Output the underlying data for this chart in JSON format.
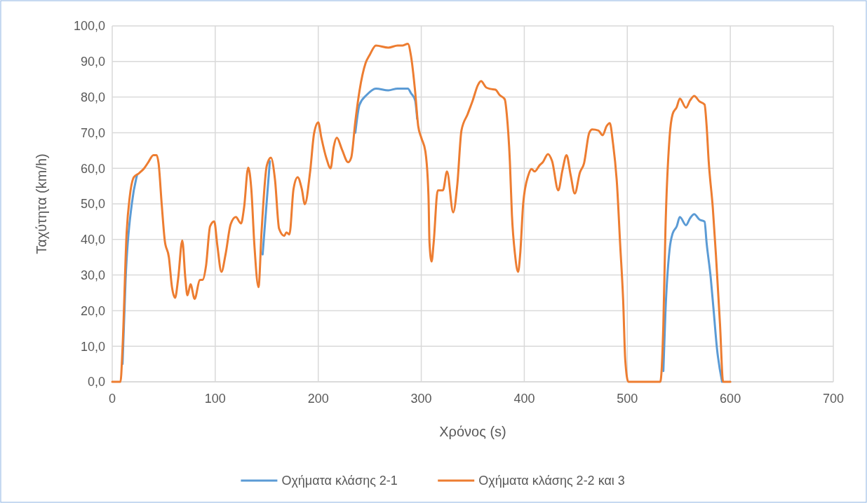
{
  "chart_data": {
    "type": "line",
    "xlabel": "Χρόνος (s)",
    "ylabel": "Ταχύτητα (km/h)",
    "xlim": [
      0,
      700
    ],
    "xticks": [
      0,
      100,
      200,
      300,
      400,
      500,
      600,
      700
    ],
    "ylim": [
      0,
      100
    ],
    "yticks": [
      {
        "value": 0,
        "label": "0,0"
      },
      {
        "value": 10,
        "label": "10,0"
      },
      {
        "value": 20,
        "label": "20,0"
      },
      {
        "value": 30,
        "label": "30,0"
      },
      {
        "value": 40,
        "label": "40,0"
      },
      {
        "value": 50,
        "label": "50,0"
      },
      {
        "value": 60,
        "label": "60,0"
      },
      {
        "value": 70,
        "label": "70,0"
      },
      {
        "value": 80,
        "label": "80,0"
      },
      {
        "value": 90,
        "label": "90,0"
      },
      {
        "value": 100,
        "label": "100,0"
      }
    ],
    "grid": true,
    "legend": "bottom",
    "line_style": "solid",
    "marker": "none",
    "series": [
      {
        "name": "Οχήματα κλάσης 2-1",
        "color": "#5b9bd5",
        "x": [
          10,
          13,
          19,
          24,
          100,
          146,
          153,
          200,
          236,
          240,
          247,
          256,
          268,
          277,
          287,
          290,
          294,
          296,
          320,
          535,
          537,
          541,
          544,
          548,
          551,
          557,
          561,
          565,
          570,
          575,
          577,
          581,
          584,
          587,
          592
        ],
        "values": [
          5,
          29,
          50,
          58,
          null,
          35.8,
          62,
          null,
          70,
          77.8,
          80.6,
          82.4,
          81.9,
          82.4,
          82.4,
          81.1,
          79.1,
          73.9,
          null,
          3,
          19.4,
          37.1,
          41.7,
          43.7,
          46.3,
          44,
          46,
          47.1,
          45.6,
          45,
          39,
          29.2,
          19.4,
          9.5,
          0
        ]
      },
      {
        "name": "Οχήματα κλάσης 2-2 και 3",
        "color": "#ed7d31",
        "x": [
          0,
          8,
          10,
          14,
          17,
          21,
          26,
          31,
          35,
          40,
          43,
          45,
          48,
          51,
          55,
          58,
          61,
          64,
          68,
          71,
          73,
          76,
          80,
          85,
          88,
          91,
          95,
          99,
          102,
          106,
          110,
          115,
          120,
          125,
          128,
          132,
          135,
          138,
          142,
          145,
          150,
          154,
          158,
          162,
          167,
          169,
          172,
          176,
          180,
          184,
          187,
          192,
          196,
          200,
          203,
          208,
          212,
          215,
          218,
          223,
          229,
          232,
          236,
          240,
          246,
          250,
          256,
          268,
          277,
          282,
          287,
          290,
          294,
          297,
          300,
          304,
          307,
          308,
          310,
          312,
          316,
          321,
          325,
          331,
          335,
          339,
          345,
          350,
          355,
          358,
          363,
          367,
          372,
          376,
          381,
          383,
          386,
          388,
          391,
          394,
          396,
          399,
          404,
          407,
          410,
          415,
          418,
          423,
          427,
          433,
          437,
          441,
          445,
          449,
          454,
          458,
          463,
          466,
          472,
          476,
          480,
          483,
          486,
          490,
          493,
          496,
          498,
          501,
          532,
          535,
          537,
          541,
          544,
          548,
          551,
          557,
          561,
          565,
          570,
          575,
          577,
          579,
          583,
          586,
          590,
          593,
          600
        ],
        "values": [
          0,
          0,
          9.5,
          42,
          52,
          57.5,
          58.6,
          60,
          61.7,
          63.7,
          63.7,
          61.4,
          50,
          39.7,
          35,
          26.6,
          23.6,
          29,
          39.7,
          29,
          24.3,
          27.4,
          23.3,
          28.6,
          28.7,
          32.5,
          43.7,
          45.1,
          38.4,
          30.9,
          35.8,
          44.3,
          46.3,
          44.5,
          49,
          60.2,
          54.2,
          38.4,
          26.6,
          42.4,
          60.7,
          63,
          56.8,
          43,
          41,
          42,
          41.4,
          54.2,
          57.5,
          54.2,
          49.9,
          58.8,
          69.9,
          72.9,
          68.6,
          62.7,
          60,
          66,
          68.6,
          65.3,
          61.7,
          63,
          73.2,
          81.7,
          89.6,
          91.9,
          94.5,
          93.9,
          94.5,
          94.5,
          95,
          91.6,
          81.7,
          71.9,
          68.6,
          64.7,
          52.2,
          39,
          33.8,
          39,
          53.8,
          53.8,
          59.1,
          47.6,
          55.5,
          70.6,
          75.2,
          79.1,
          83.4,
          84.5,
          82.7,
          82.3,
          82.1,
          80.6,
          79.4,
          75.2,
          62,
          46.9,
          35.8,
          30.9,
          35.8,
          50.3,
          58.1,
          59.8,
          59.1,
          60.9,
          61.7,
          64,
          62,
          53.8,
          59.4,
          63.7,
          58.1,
          52.9,
          58.8,
          61.4,
          69.9,
          70.9,
          70.6,
          69.3,
          71.9,
          72.7,
          67.3,
          55.5,
          39,
          22.7,
          6.2,
          0,
          0,
          16.1,
          42.4,
          68.6,
          75.2,
          77.2,
          79.6,
          77,
          79.1,
          80.3,
          78.8,
          77.9,
          71.9,
          62,
          48.9,
          35.8,
          16.1,
          0,
          0
        ]
      }
    ]
  }
}
